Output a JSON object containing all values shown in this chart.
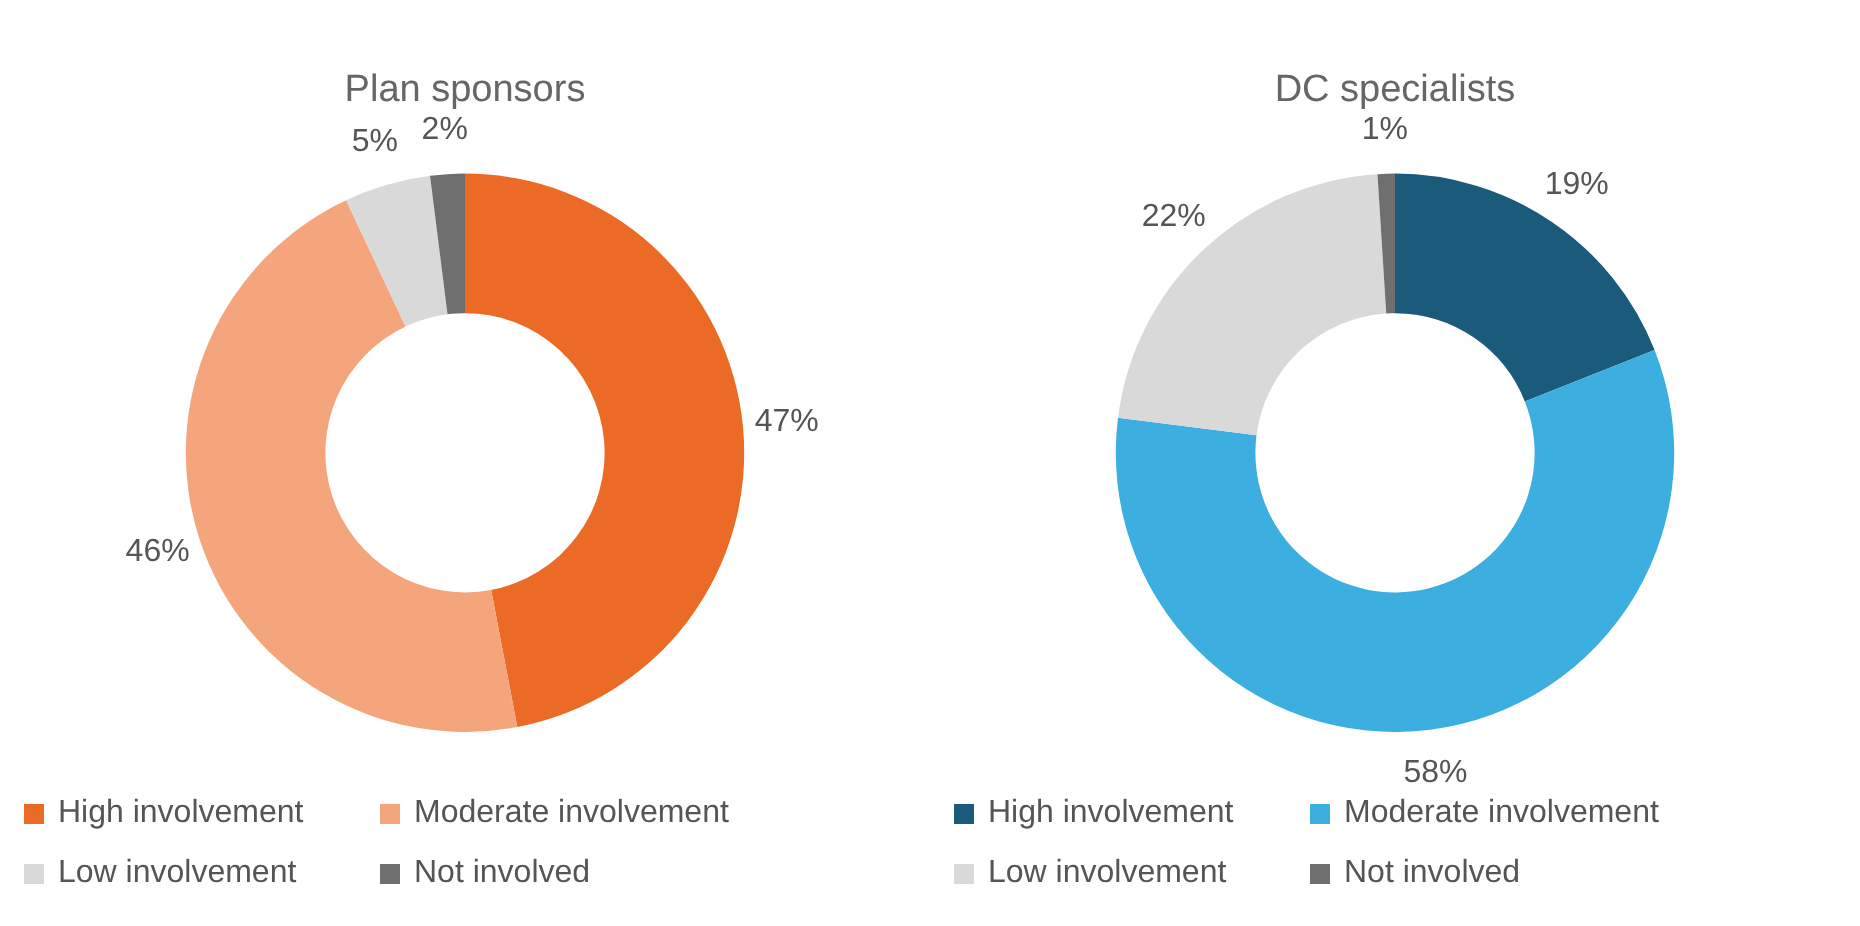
{
  "chart_data": [
    {
      "type": "donut",
      "title": "Plan sponsors",
      "categories": [
        "High involvement",
        "Moderate involvement",
        "Low involvement",
        "Not involved"
      ],
      "values": [
        47,
        46,
        5,
        2
      ],
      "value_labels": [
        "47%",
        "46%",
        "5%",
        "2%"
      ],
      "colors": [
        "#eb6a25",
        "#f4a57b",
        "#d9d9d9",
        "#6f6f6f"
      ],
      "legend": "bottom"
    },
    {
      "type": "donut",
      "title": "DC specialists",
      "categories": [
        "High involvement",
        "Moderate involvement",
        "Low involvement",
        "Not involved"
      ],
      "values": [
        19,
        58,
        22,
        1
      ],
      "value_labels": [
        "19%",
        "58%",
        "22%",
        "1%"
      ],
      "colors": [
        "#1a5a7a",
        "#3daee0",
        "#d9d9d9",
        "#6f6f6f"
      ],
      "legend": "bottom"
    }
  ]
}
